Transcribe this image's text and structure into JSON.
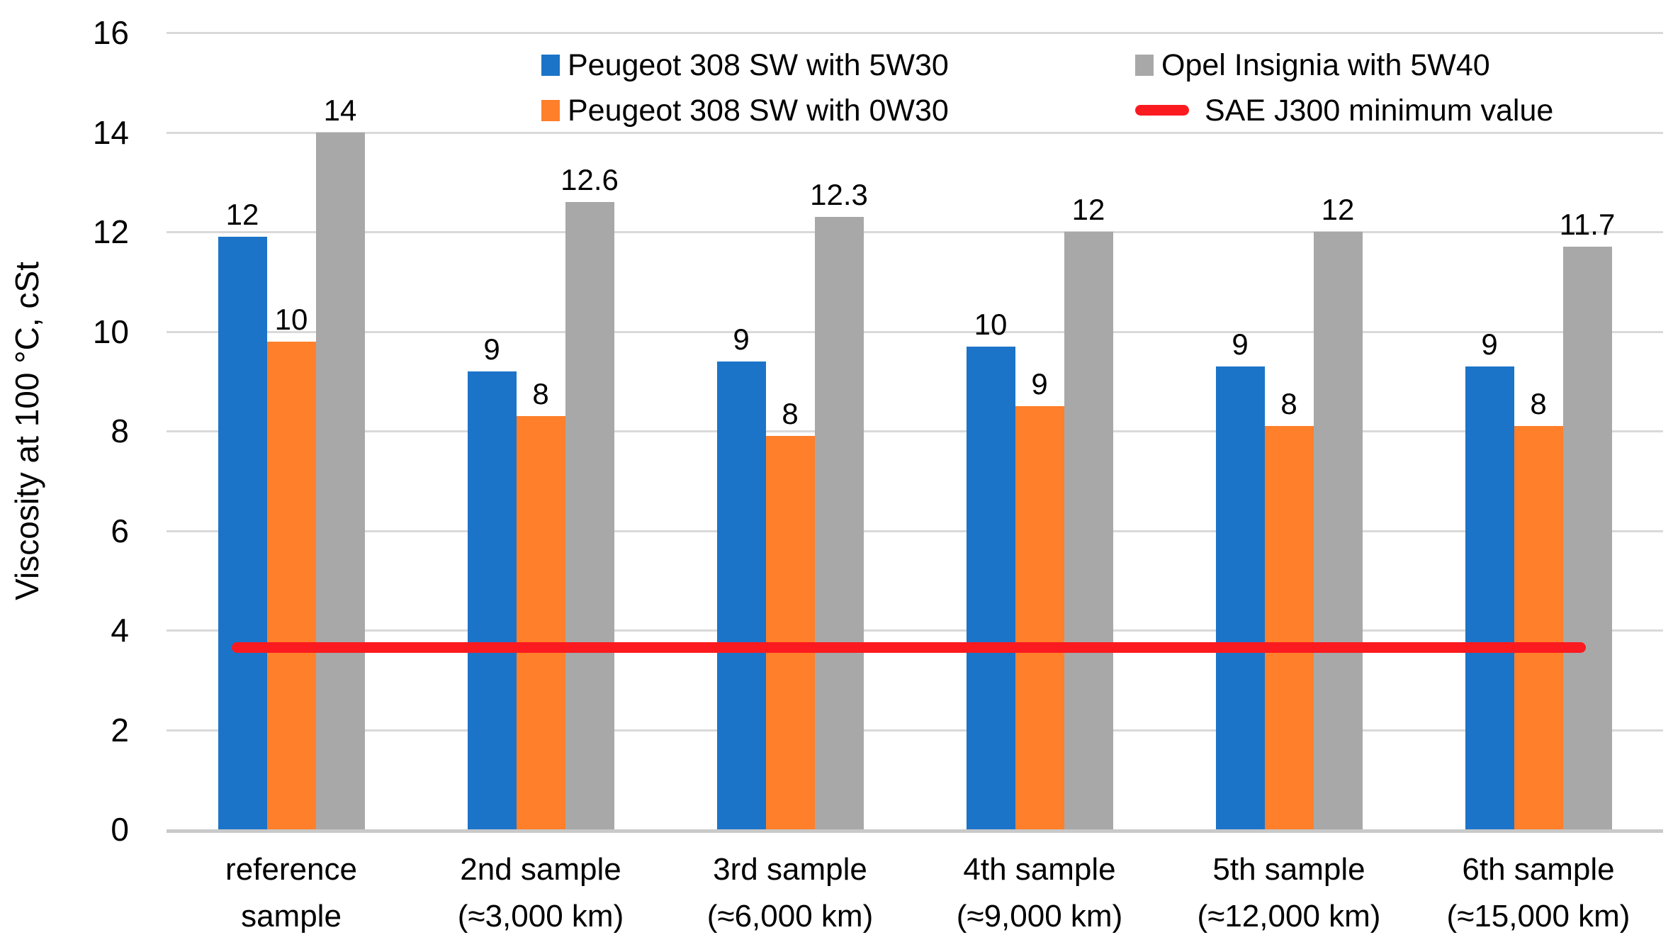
{
  "chart_data": {
    "type": "bar",
    "title": "",
    "xlabel": "",
    "ylabel": "Viscosity at 100 °C, cSt",
    "ylim": [
      0,
      16
    ],
    "yticks": [
      0,
      2,
      4,
      6,
      8,
      10,
      12,
      14,
      16
    ],
    "grid": true,
    "legend_position": "top-center-two-columns",
    "categories": [
      [
        "reference",
        "sample"
      ],
      [
        "2nd sample",
        "(≈3,000 km)"
      ],
      [
        "3rd sample",
        "(≈6,000 km)"
      ],
      [
        "4th sample",
        "(≈9,000 km)"
      ],
      [
        "5th sample",
        "(≈12,000 km)"
      ],
      [
        "6th sample",
        "(≈15,000 km)"
      ]
    ],
    "series": [
      {
        "name": "Peugeot 308 SW with 5W30",
        "color": "#1C74C8",
        "values": [
          11.9,
          9.2,
          9.4,
          9.7,
          9.3,
          9.3
        ],
        "labels": [
          "12",
          "9",
          "9",
          "10",
          "9",
          "9"
        ]
      },
      {
        "name": "Peugeot 308 SW with 0W30",
        "color": "#FF7F2A",
        "values": [
          9.8,
          8.3,
          7.9,
          8.5,
          8.1,
          8.1
        ],
        "labels": [
          "10",
          "8",
          "8",
          "9",
          "8",
          "8"
        ]
      },
      {
        "name": "Opel Insignia with 5W40",
        "color": "#A8A8A8",
        "values": [
          14.0,
          12.6,
          12.3,
          12.0,
          12.0,
          11.7
        ],
        "labels": [
          "14",
          "12.6",
          "12.3",
          "12",
          "12",
          "11.7"
        ]
      }
    ],
    "ref_line": {
      "name": "SAE J300 minimum value",
      "color": "#FB1A20",
      "value": 3.65
    }
  },
  "colors": {
    "background": "#FFFFFF",
    "gridline": "#D9D9D9",
    "axis_line": "#C9C9C9",
    "text": "#000000"
  }
}
